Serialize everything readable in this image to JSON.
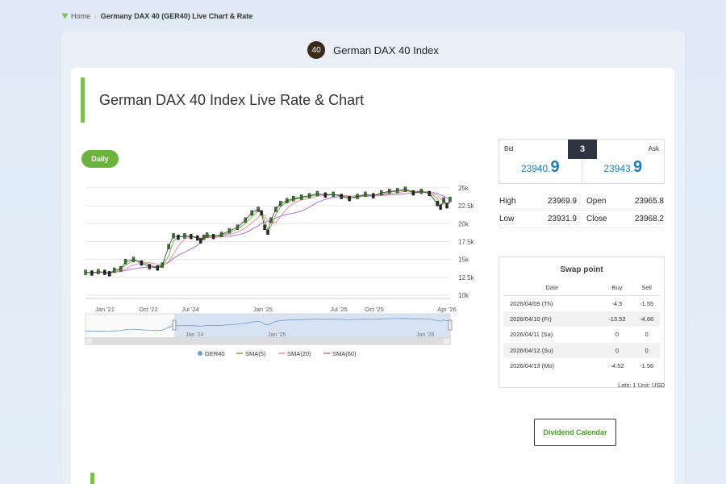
{
  "breadcrumb": {
    "home": "Home",
    "separator": "›",
    "current": "Germany DAX 40 (GER40) Live Chart & Rate"
  },
  "header": {
    "badge": "40",
    "title": "German DAX 40 Index"
  },
  "page_title": "German DAX 40 Index Live Rate & Chart",
  "timeframe_button": "Daily",
  "quote": {
    "bid_label": "Bid",
    "ask_label": "Ask",
    "bid_main": "23940.",
    "bid_big": "9",
    "ask_main": "23943.",
    "ask_big": "9",
    "spread": "3"
  },
  "stats": {
    "high_label": "High",
    "high": "23969.9",
    "open_label": "Open",
    "open": "23965.8",
    "low_label": "Low",
    "low": "23931.9",
    "close_label": "Close",
    "close": "23968.2"
  },
  "swap": {
    "title": "Swap point",
    "headers": [
      "Date",
      "Buy",
      "Sell"
    ],
    "rows": [
      [
        "2026/04/09 (Th)",
        "-4.5",
        "-1.55"
      ],
      [
        "2026/04/10 (Fr)",
        "-13.52",
        "-4.66"
      ],
      [
        "2026/04/11 (Sa)",
        "0",
        "0"
      ],
      [
        "2026/04/12 (Su)",
        "0",
        "0"
      ],
      [
        "2026/04/13 (Mo)",
        "-4.52",
        "-1.56"
      ]
    ]
  },
  "lots_text": "Lots: 1 Unit: USD",
  "dividend_button": "Dividend Calendar",
  "colors": {
    "accent_green": "#7cc04b",
    "price_blue": "#1a7fc1",
    "sma5": "#6ab43e",
    "sma20": "#f08aa0",
    "sma60": "#b070e0",
    "navigator": "#c8d8ee"
  },
  "chart_data": {
    "type": "line",
    "title": "",
    "xlabel": "",
    "ylabel": "",
    "ylim": [
      10000,
      26000
    ],
    "yticks": [
      "10k",
      "12.5k",
      "15k",
      "17.5k",
      "20k",
      "22.5k",
      "25k"
    ],
    "ytick_values": [
      10000,
      12500,
      15000,
      17500,
      20000,
      22500,
      25000
    ],
    "xticks": [
      "Jan '21",
      "Oct '22",
      "Jul '24",
      "Jan '25",
      "Jul '25",
      "Oct '25",
      "Apr '26"
    ],
    "navigator_ticks": [
      "Jan '24",
      "Jan '25",
      "Jan '26"
    ],
    "grid": true,
    "legend": [
      "GER40",
      "SMA(5)",
      "SMA(20)",
      "SMA(60)"
    ],
    "x": [
      0,
      4,
      8,
      12,
      15,
      18,
      22,
      25,
      30,
      35,
      40,
      45,
      48,
      52,
      55,
      58,
      62,
      66,
      70,
      72,
      74,
      76,
      80,
      85,
      90,
      95,
      100,
      104,
      108,
      110,
      112,
      114,
      116,
      119,
      122,
      126,
      130,
      135,
      140,
      145,
      150,
      155,
      160,
      165,
      170,
      175,
      180,
      185,
      190,
      195,
      200,
      205,
      210,
      215,
      220,
      222,
      224,
      226,
      228
    ],
    "values": [
      13200,
      13100,
      13300,
      13200,
      13000,
      13500,
      13700,
      14700,
      15000,
      14500,
      14000,
      13800,
      14200,
      16800,
      18300,
      18100,
      18300,
      18200,
      18000,
      17600,
      18100,
      18400,
      18200,
      18500,
      19000,
      19500,
      20500,
      21500,
      22000,
      21500,
      19500,
      18800,
      20500,
      22000,
      22800,
      23200,
      23500,
      23700,
      23900,
      24200,
      24000,
      24100,
      23800,
      23500,
      23800,
      24100,
      23900,
      24300,
      24500,
      24600,
      24800,
      24300,
      24500,
      24200,
      22800,
      22300,
      23300,
      22500,
      23400
    ]
  }
}
